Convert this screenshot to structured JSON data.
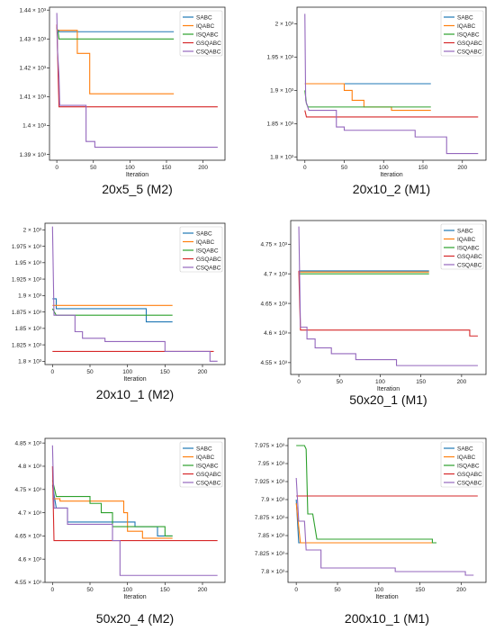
{
  "colors": {
    "SABC": "#1f77b4",
    "IQABC": "#ff7f0e",
    "ISQABC": "#2ca02c",
    "GSQABC": "#d62728",
    "CSQABC": "#9467bd"
  },
  "legend": [
    "SABC",
    "IQABC",
    "ISQABC",
    "GSQABC",
    "CSQABC"
  ],
  "chart_data": [
    {
      "type": "line",
      "caption": "20x5_5 (M2)",
      "xlabel": "Iteration",
      "xlim": [
        -10,
        230
      ],
      "ylim": [
        1388,
        1441
      ],
      "xticks": [
        0,
        50,
        100,
        150,
        200
      ],
      "yticks": [
        1390,
        1400,
        1410,
        1420,
        1430,
        1440
      ],
      "ytick_labels": [
        "1.39 × 10³",
        "1.4 × 10³",
        "1.41 × 10³",
        "1.42 × 10³",
        "1.43 × 10³",
        "1.44 × 10³"
      ],
      "series": [
        {
          "name": "SABC",
          "points": [
            [
              0,
              1433
            ],
            [
              3,
              1433
            ],
            [
              3,
              1432.5
            ],
            [
              160,
              1432.5
            ]
          ]
        },
        {
          "name": "IQABC",
          "points": [
            [
              0,
              1433
            ],
            [
              28,
              1433
            ],
            [
              28,
              1425
            ],
            [
              45,
              1425
            ],
            [
              45,
              1411
            ],
            [
              160,
              1411
            ]
          ]
        },
        {
          "name": "ISQABC",
          "points": [
            [
              0,
              1434
            ],
            [
              2,
              1432
            ],
            [
              3,
              1430
            ],
            [
              160,
              1430
            ]
          ]
        },
        {
          "name": "GSQABC",
          "points": [
            [
              0,
              1435
            ],
            [
              3,
              1406.5
            ],
            [
              220,
              1406.5
            ]
          ]
        },
        {
          "name": "CSQABC",
          "points": [
            [
              0,
              1439
            ],
            [
              1,
              1426
            ],
            [
              3,
              1417
            ],
            [
              4,
              1407
            ],
            [
              40,
              1407
            ],
            [
              40,
              1394.5
            ],
            [
              52,
              1394.5
            ],
            [
              52,
              1392.5
            ],
            [
              220,
              1392.5
            ]
          ]
        }
      ]
    },
    {
      "type": "line",
      "caption": "20x10_2 (M1)",
      "xlabel": "Iteration",
      "xlim": [
        -10,
        230
      ],
      "ylim": [
        1795,
        2025
      ],
      "xticks": [
        0,
        50,
        100,
        150,
        200
      ],
      "yticks": [
        1800,
        1850,
        1900,
        1950,
        2000
      ],
      "ytick_labels": [
        "1.8 × 10³",
        "1.85 × 10³",
        "1.9 × 10³",
        "1.95 × 10³",
        "2 × 10³"
      ],
      "series": [
        {
          "name": "SABC",
          "points": [
            [
              0,
              1910
            ],
            [
              160,
              1910
            ]
          ]
        },
        {
          "name": "IQABC",
          "points": [
            [
              0,
              1910
            ],
            [
              50,
              1910
            ],
            [
              50,
              1900
            ],
            [
              60,
              1900
            ],
            [
              60,
              1885
            ],
            [
              75,
              1885
            ],
            [
              75,
              1875
            ],
            [
              110,
              1875
            ],
            [
              110,
              1870
            ],
            [
              160,
              1870
            ]
          ]
        },
        {
          "name": "ISQABC",
          "points": [
            [
              0,
              1900
            ],
            [
              2,
              1880
            ],
            [
              4,
              1875
            ],
            [
              160,
              1875
            ]
          ]
        },
        {
          "name": "GSQABC",
          "points": [
            [
              0,
              1870
            ],
            [
              2,
              1860
            ],
            [
              220,
              1860
            ]
          ]
        },
        {
          "name": "CSQABC",
          "points": [
            [
              0,
              2015
            ],
            [
              1,
              1885
            ],
            [
              5,
              1870
            ],
            [
              40,
              1870
            ],
            [
              40,
              1845
            ],
            [
              50,
              1845
            ],
            [
              50,
              1840
            ],
            [
              140,
              1840
            ],
            [
              140,
              1830
            ],
            [
              180,
              1830
            ],
            [
              180,
              1805
            ],
            [
              220,
              1805
            ]
          ]
        }
      ]
    },
    {
      "type": "line",
      "caption": "20x10_1 (M2)",
      "xlabel": "Iteration",
      "xlim": [
        -10,
        230
      ],
      "ylim": [
        1795,
        2010
      ],
      "xticks": [
        0,
        50,
        100,
        150,
        200
      ],
      "yticks": [
        1800,
        1825,
        1850,
        1875,
        1900,
        1925,
        1950,
        1975,
        2000
      ],
      "ytick_labels": [
        "1.8 × 10³",
        "1.825 × 10³",
        "1.85 × 10³",
        "1.875 × 10³",
        "1.9 × 10³",
        "1.925 × 10³",
        "1.95 × 10³",
        "1.975 × 10³",
        "2 × 10³"
      ],
      "series": [
        {
          "name": "SABC",
          "points": [
            [
              0,
              1895
            ],
            [
              5,
              1895
            ],
            [
              5,
              1880
            ],
            [
              125,
              1880
            ],
            [
              125,
              1860
            ],
            [
              160,
              1860
            ]
          ]
        },
        {
          "name": "IQABC",
          "points": [
            [
              0,
              1885
            ],
            [
              160,
              1885
            ]
          ]
        },
        {
          "name": "ISQABC",
          "points": [
            [
              0,
              1880
            ],
            [
              5,
              1870
            ],
            [
              160,
              1870
            ]
          ]
        },
        {
          "name": "GSQABC",
          "points": [
            [
              0,
              1815
            ],
            [
              215,
              1815
            ]
          ]
        },
        {
          "name": "CSQABC",
          "points": [
            [
              0,
              2005
            ],
            [
              2,
              1870
            ],
            [
              30,
              1870
            ],
            [
              30,
              1845
            ],
            [
              40,
              1845
            ],
            [
              40,
              1835
            ],
            [
              70,
              1835
            ],
            [
              70,
              1830
            ],
            [
              150,
              1830
            ],
            [
              150,
              1815
            ],
            [
              210,
              1815
            ],
            [
              210,
              1800
            ],
            [
              220,
              1800
            ]
          ]
        }
      ]
    },
    {
      "type": "line",
      "caption": "50x20_1 (M1)",
      "xlabel": "Iteration",
      "xlim": [
        -10,
        230
      ],
      "ylim": [
        4530,
        4790
      ],
      "xticks": [
        0,
        50,
        100,
        150,
        200
      ],
      "yticks": [
        4550,
        4600,
        4650,
        4700,
        4750
      ],
      "ytick_labels": [
        "4.55 × 10³",
        "4.6 × 10³",
        "4.65 × 10³",
        "4.7 × 10³",
        "4.75 × 10³"
      ],
      "series": [
        {
          "name": "SABC",
          "points": [
            [
              0,
              4705
            ],
            [
              160,
              4705
            ]
          ]
        },
        {
          "name": "IQABC",
          "points": [
            [
              0,
              4703
            ],
            [
              160,
              4703
            ]
          ]
        },
        {
          "name": "ISQABC",
          "points": [
            [
              0,
              4700
            ],
            [
              160,
              4700
            ]
          ]
        },
        {
          "name": "GSQABC",
          "points": [
            [
              0,
              4705
            ],
            [
              2,
              4605
            ],
            [
              210,
              4605
            ],
            [
              210,
              4595
            ],
            [
              220,
              4595
            ]
          ]
        },
        {
          "name": "CSQABC",
          "points": [
            [
              0,
              4780
            ],
            [
              2,
              4610
            ],
            [
              10,
              4610
            ],
            [
              10,
              4590
            ],
            [
              20,
              4590
            ],
            [
              20,
              4575
            ],
            [
              40,
              4575
            ],
            [
              40,
              4565
            ],
            [
              70,
              4565
            ],
            [
              70,
              4555
            ],
            [
              120,
              4555
            ],
            [
              120,
              4545
            ],
            [
              220,
              4545
            ]
          ]
        }
      ]
    },
    {
      "type": "line",
      "caption": "50x20_4 (M2)",
      "xlabel": "Iteration",
      "xlim": [
        -10,
        230
      ],
      "ylim": [
        4550,
        4860
      ],
      "xticks": [
        0,
        50,
        100,
        150,
        200
      ],
      "yticks": [
        4550,
        4600,
        4650,
        4700,
        4750,
        4800,
        4850
      ],
      "ytick_labels": [
        "4.55 × 10³",
        "4.6 × 10³",
        "4.65 × 10³",
        "4.7 × 10³",
        "4.75 × 10³",
        "4.8 × 10³",
        "4.85 × 10³"
      ],
      "series": [
        {
          "name": "SABC",
          "points": [
            [
              0,
              4760
            ],
            [
              5,
              4710
            ],
            [
              20,
              4710
            ],
            [
              20,
              4680
            ],
            [
              110,
              4680
            ],
            [
              110,
              4670
            ],
            [
              140,
              4670
            ],
            [
              140,
              4650
            ],
            [
              160,
              4650
            ]
          ]
        },
        {
          "name": "IQABC",
          "points": [
            [
              0,
              4730
            ],
            [
              10,
              4730
            ],
            [
              10,
              4725
            ],
            [
              95,
              4725
            ],
            [
              95,
              4700
            ],
            [
              100,
              4700
            ],
            [
              100,
              4660
            ],
            [
              120,
              4660
            ],
            [
              120,
              4645
            ],
            [
              160,
              4645
            ]
          ]
        },
        {
          "name": "ISQABC",
          "points": [
            [
              0,
              4770
            ],
            [
              5,
              4735
            ],
            [
              50,
              4735
            ],
            [
              50,
              4720
            ],
            [
              65,
              4720
            ],
            [
              65,
              4700
            ],
            [
              80,
              4700
            ],
            [
              80,
              4670
            ],
            [
              150,
              4670
            ],
            [
              150,
              4650
            ],
            [
              160,
              4650
            ]
          ]
        },
        {
          "name": "GSQABC",
          "points": [
            [
              0,
              4800
            ],
            [
              2,
              4640
            ],
            [
              220,
              4640
            ]
          ]
        },
        {
          "name": "CSQABC",
          "points": [
            [
              0,
              4845
            ],
            [
              2,
              4710
            ],
            [
              20,
              4710
            ],
            [
              20,
              4675
            ],
            [
              80,
              4675
            ],
            [
              80,
              4640
            ],
            [
              90,
              4640
            ],
            [
              90,
              4565
            ],
            [
              220,
              4565
            ]
          ]
        }
      ]
    },
    {
      "type": "line",
      "caption": "200x10_1 (M1)",
      "xlabel": "Iteration",
      "xlim": [
        -10,
        230
      ],
      "ylim": [
        7785,
        7985
      ],
      "xticks": [
        0,
        50,
        100,
        150,
        200
      ],
      "yticks": [
        7800,
        7825,
        7850,
        7875,
        7900,
        7925,
        7950,
        7975
      ],
      "ytick_labels": [
        "7.8 × 10³",
        "7.825 × 10³",
        "7.85 × 10³",
        "7.875 × 10³",
        "7.9 × 10³",
        "7.925 × 10³",
        "7.95 × 10³",
        "7.975 × 10³"
      ],
      "series": [
        {
          "name": "SABC",
          "points": [
            [
              0,
              7900
            ],
            [
              3,
              7840
            ],
            [
              160,
              7840
            ]
          ]
        },
        {
          "name": "IQABC",
          "points": [
            [
              0,
              7895
            ],
            [
              5,
              7840
            ],
            [
              165,
              7840
            ]
          ]
        },
        {
          "name": "ISQABC",
          "points": [
            [
              0,
              7975
            ],
            [
              10,
              7975
            ],
            [
              12,
              7970
            ],
            [
              14,
              7880
            ],
            [
              20,
              7880
            ],
            [
              25,
              7845
            ],
            [
              165,
              7845
            ],
            [
              165,
              7840
            ],
            [
              170,
              7840
            ]
          ]
        },
        {
          "name": "GSQABC",
          "points": [
            [
              0,
              7905
            ],
            [
              220,
              7905
            ]
          ]
        },
        {
          "name": "CSQABC",
          "points": [
            [
              0,
              7930
            ],
            [
              3,
              7870
            ],
            [
              10,
              7870
            ],
            [
              12,
              7830
            ],
            [
              30,
              7830
            ],
            [
              30,
              7805
            ],
            [
              120,
              7805
            ],
            [
              120,
              7800
            ],
            [
              205,
              7800
            ],
            [
              205,
              7795
            ],
            [
              215,
              7795
            ]
          ]
        }
      ]
    }
  ]
}
